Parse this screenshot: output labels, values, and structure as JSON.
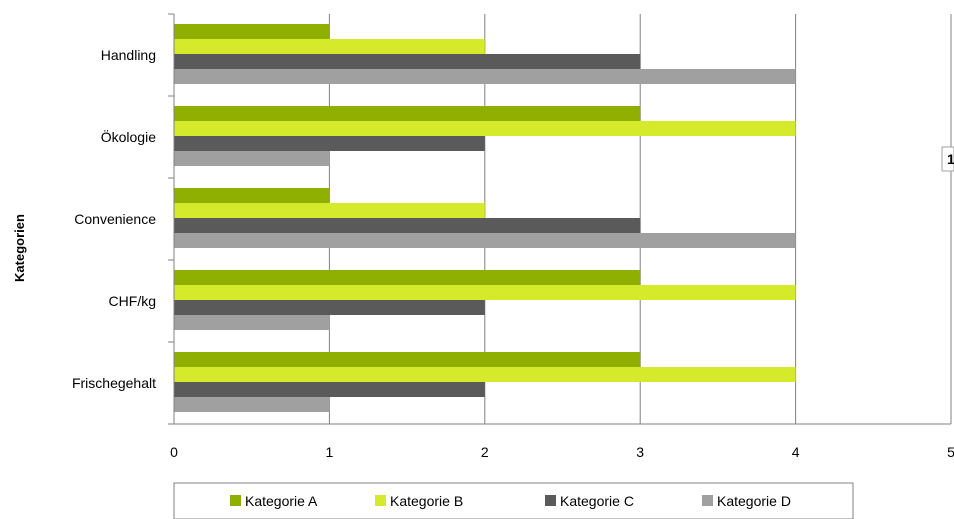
{
  "chart_data": {
    "type": "bar",
    "orientation": "horizontal",
    "title": "",
    "xlabel": "",
    "ylabel": "Kategorien",
    "categories": [
      "Frischegehalt",
      "CHF/kg",
      "Convenience",
      "Ökologie",
      "Handling"
    ],
    "series": [
      {
        "name": "Kategorie A",
        "color": "#8fb000",
        "values": [
          3,
          3,
          1,
          3,
          1
        ]
      },
      {
        "name": "Kategorie B",
        "color": "#d4ea2a",
        "values": [
          4,
          4,
          2,
          4,
          2
        ]
      },
      {
        "name": "Kategorie C",
        "color": "#5a5a5a",
        "values": [
          2,
          2,
          3,
          2,
          3
        ]
      },
      {
        "name": "Kategorie D",
        "color": "#a0a0a0",
        "values": [
          1,
          1,
          4,
          1,
          4
        ]
      }
    ],
    "xlim": [
      0,
      5
    ],
    "xticks": [
      "0",
      "1",
      "2",
      "3",
      "4",
      "5"
    ],
    "grid": true,
    "legend_position": "bottom",
    "side_label": "1"
  }
}
